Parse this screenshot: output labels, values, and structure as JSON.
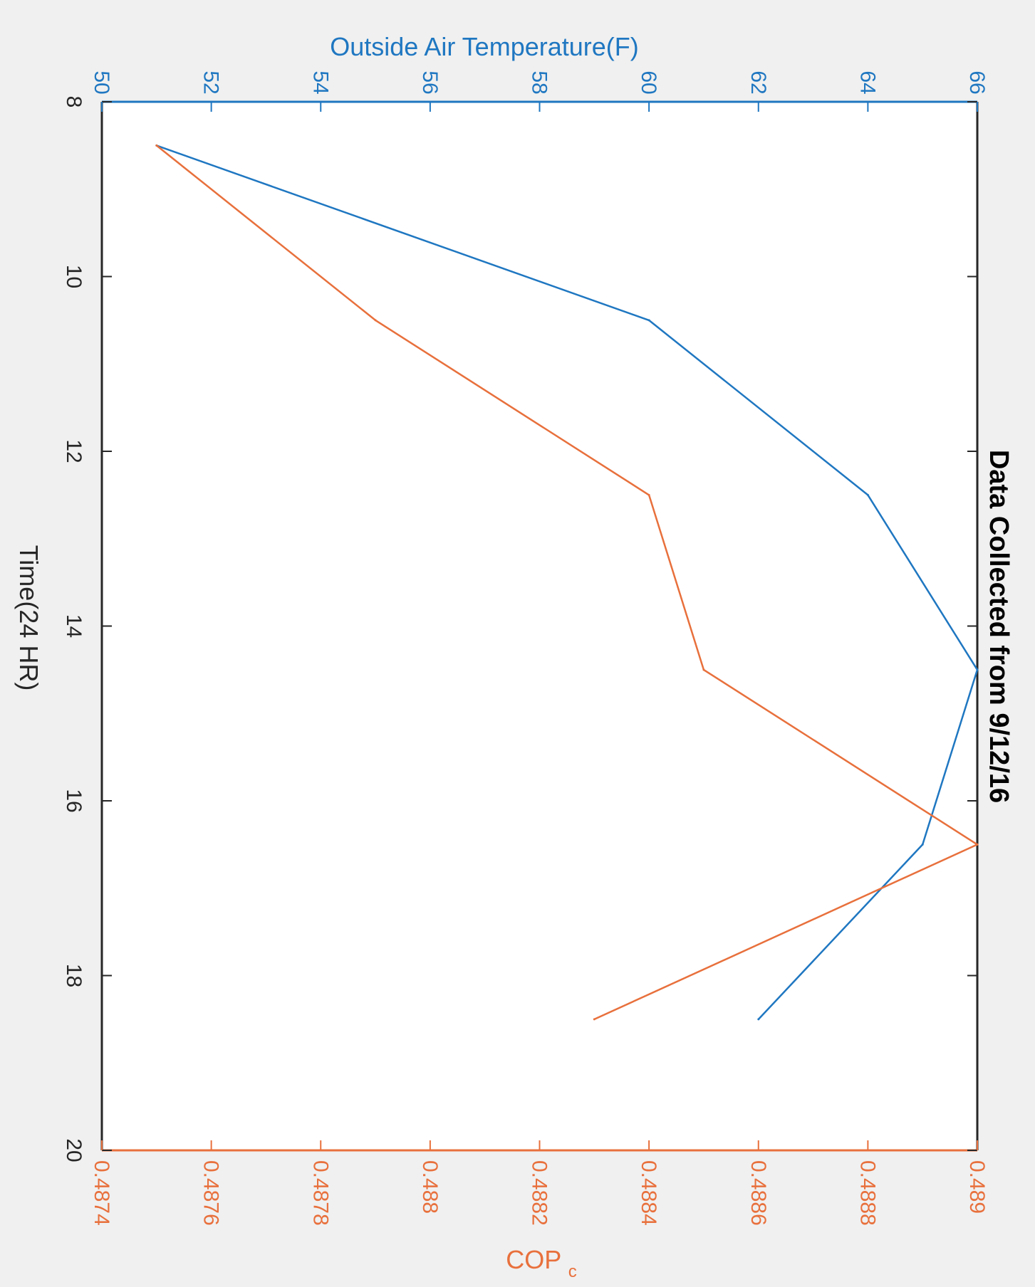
{
  "chart_data": {
    "type": "line",
    "title": "Data Collected from 9/12/16",
    "xlabel": "Time(24 HR)",
    "x_ticks": [
      "8",
      "10",
      "12",
      "14",
      "16",
      "18",
      "20"
    ],
    "xlim": [
      8,
      20
    ],
    "ylabel_top": "Outside Air Temperature(F)",
    "ylim_top": [
      50,
      66
    ],
    "y_ticks_top": [
      "50",
      "52",
      "54",
      "56",
      "58",
      "60",
      "62",
      "64",
      "66"
    ],
    "ylabel_bottom": "COP",
    "ylabel_bottom_sub": "c",
    "ylim_bottom": [
      0.4874,
      0.489
    ],
    "y_ticks_bottom": [
      "0.4874",
      "0.4876",
      "0.4878",
      "0.488",
      "0.4882",
      "0.4884",
      "0.4886",
      "0.4888",
      "0.489"
    ],
    "orientation": "rotated 90 degrees clockwise",
    "grid": false,
    "series": [
      {
        "axis": "top",
        "color": "#1f77c1",
        "x": [
          8.5,
          10.5,
          12.5,
          14.5,
          16.5,
          18.5
        ],
        "y": [
          51,
          60,
          64,
          66,
          65,
          62
        ]
      },
      {
        "axis": "bottom",
        "color": "#e8703c",
        "x": [
          8.5,
          10.5,
          12.5,
          14.5,
          16.5,
          18.5
        ],
        "y": [
          0.4875,
          0.4879,
          0.4884,
          0.4885,
          0.489,
          0.4883
        ]
      }
    ]
  }
}
